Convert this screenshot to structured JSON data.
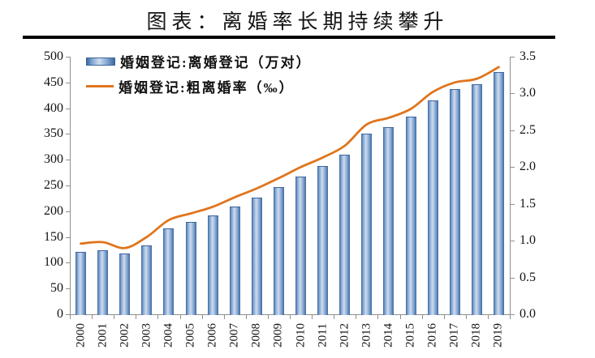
{
  "title": "图表：离婚率长期持续攀升",
  "legend": {
    "bars_label": "婚姻登记:离婚登记（万对）",
    "line_label": "婚姻登记:粗离婚率（‰）"
  },
  "colors": {
    "bar_edge": "#3c659c",
    "bar_light": "#cfdcee",
    "line": "#df751c",
    "axis": "#8f8f8f",
    "divider": "#000000",
    "text": "#151515"
  },
  "chart_data": {
    "type": "combo",
    "title": "图表：离婚率长期持续攀升",
    "categories": [
      "2000",
      "2001",
      "2002",
      "2003",
      "2004",
      "2005",
      "2006",
      "2007",
      "2008",
      "2009",
      "2010",
      "2011",
      "2012",
      "2013",
      "2014",
      "2015",
      "2016",
      "2017",
      "2018",
      "2019"
    ],
    "series": [
      {
        "name": "婚姻登记:离婚登记（万对）",
        "type": "bar",
        "axis": "left",
        "values": [
          121.3,
          125.0,
          117.7,
          133.1,
          166.5,
          178.5,
          191.3,
          209.8,
          226.9,
          246.8,
          267.8,
          287.4,
          310.4,
          350.0,
          363.7,
          384.1,
          415.8,
          437.4,
          446.1,
          470.1
        ]
      },
      {
        "name": "婚姻登记:粗离婚率（‰）",
        "type": "line",
        "axis": "right",
        "values": [
          0.96,
          0.98,
          0.9,
          1.05,
          1.28,
          1.37,
          1.46,
          1.59,
          1.71,
          1.85,
          2.0,
          2.13,
          2.29,
          2.58,
          2.67,
          2.79,
          3.02,
          3.15,
          3.2,
          3.36
        ]
      }
    ],
    "left_axis": {
      "min": 0,
      "max": 500,
      "step": 50,
      "ticks": [
        "0",
        "50",
        "100",
        "150",
        "200",
        "250",
        "300",
        "350",
        "400",
        "450",
        "500"
      ]
    },
    "right_axis": {
      "min": 0,
      "max": 3.5,
      "step": 0.5,
      "ticks": [
        "0.0",
        "0.5",
        "1.0",
        "1.5",
        "2.0",
        "2.5",
        "3.0",
        "3.5"
      ]
    },
    "grid": false,
    "legend_position": "top-left-inside"
  }
}
